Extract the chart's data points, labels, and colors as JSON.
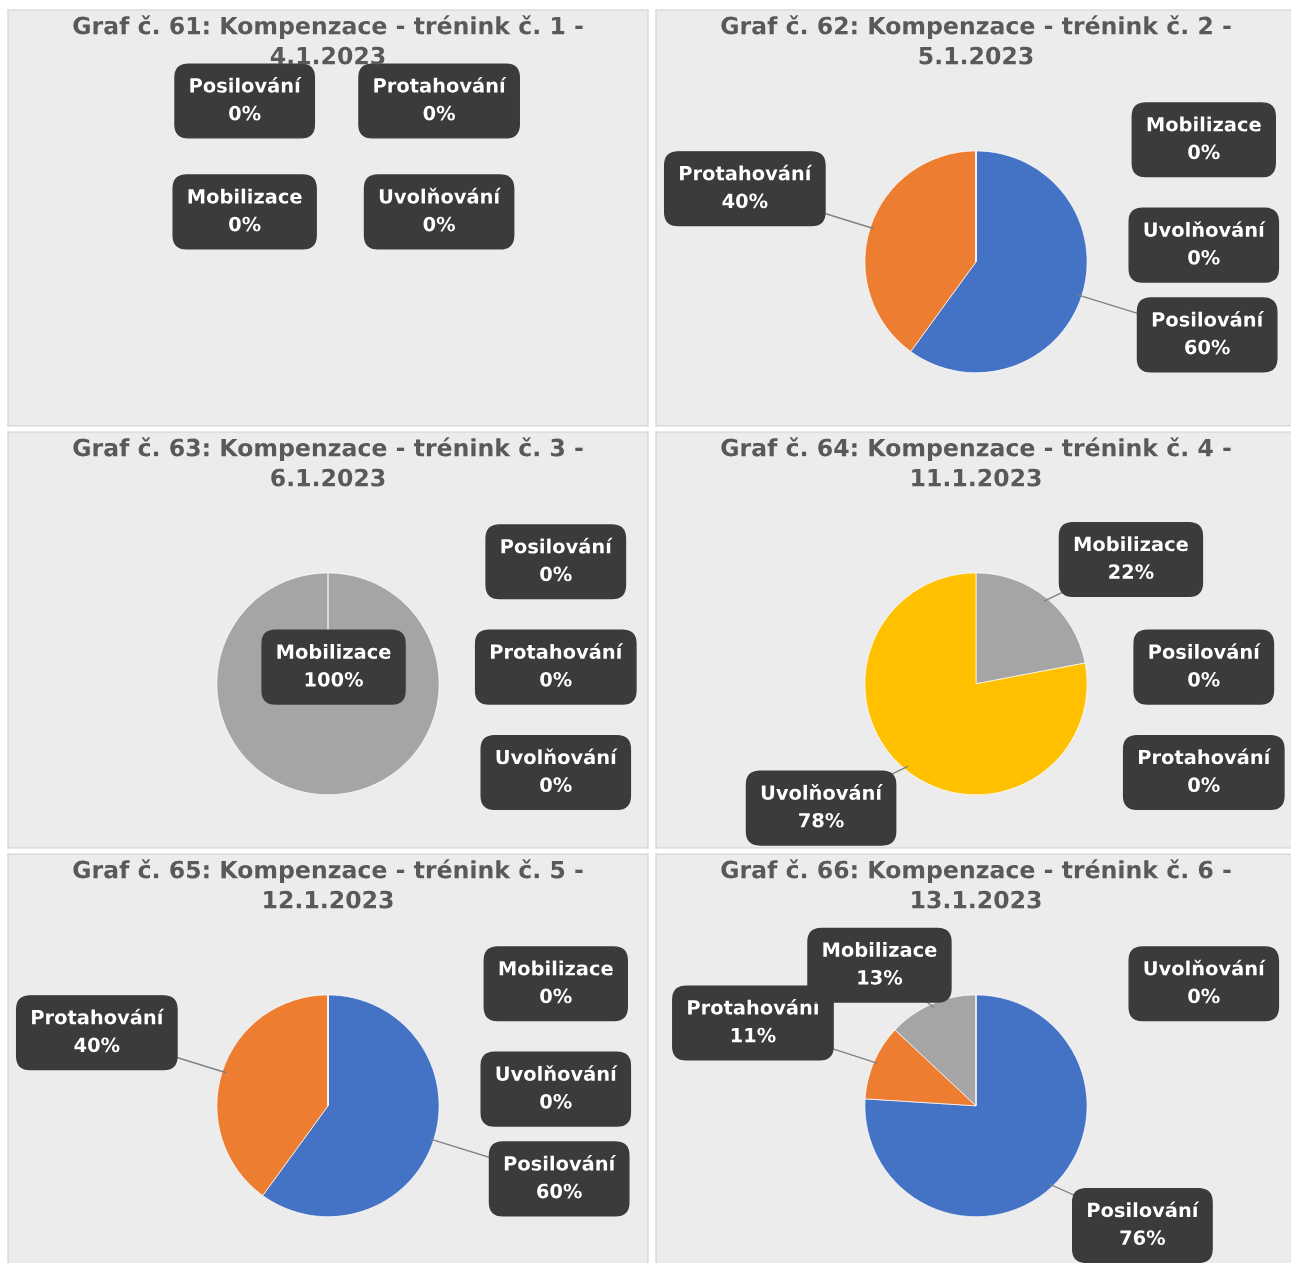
{
  "chart_data": [
    {
      "type": "other",
      "title": "Graf č. 61: Kompenzace - trénink č. 1 - 4.1.2023",
      "categories": [
        "Posilování",
        "Protahování",
        "Mobilizace",
        "Uvolňování"
      ],
      "values": [
        0,
        0,
        0,
        0
      ],
      "value_labels": [
        "0%",
        "0%",
        "0%",
        "0%"
      ]
    },
    {
      "type": "pie",
      "title": "Graf č. 62: Kompenzace - trénink č. 2 - 5.1.2023",
      "categories": [
        "Posilování",
        "Protahování",
        "Mobilizace",
        "Uvolňování"
      ],
      "values": [
        60,
        40,
        0,
        0
      ],
      "value_labels": [
        "60%",
        "40%",
        "0%",
        "0%"
      ],
      "colors": [
        "#4472c4",
        "#ed7d31",
        "#a5a5a5",
        "#ffc000"
      ]
    },
    {
      "type": "pie",
      "title": "Graf č. 63: Kompenzace - trénink č. 3 - 6.1.2023",
      "categories": [
        "Posilování",
        "Protahování",
        "Mobilizace",
        "Uvolňování"
      ],
      "values": [
        0,
        0,
        100,
        0
      ],
      "value_labels": [
        "0%",
        "0%",
        "100%",
        "0%"
      ],
      "colors": [
        "#4472c4",
        "#ed7d31",
        "#a5a5a5",
        "#ffc000"
      ]
    },
    {
      "type": "pie",
      "title": "Graf č. 64: Kompenzace - trénink č. 4 - 11.1.2023",
      "categories": [
        "Posilování",
        "Protahování",
        "Mobilizace",
        "Uvolňování"
      ],
      "values": [
        0,
        0,
        22,
        78
      ],
      "value_labels": [
        "0%",
        "0%",
        "22%",
        "78%"
      ],
      "colors": [
        "#4472c4",
        "#ed7d31",
        "#a5a5a5",
        "#ffc000"
      ]
    },
    {
      "type": "pie",
      "title": "Graf č. 65: Kompenzace - trénink č. 5 - 12.1.2023",
      "categories": [
        "Posilování",
        "Protahování",
        "Mobilizace",
        "Uvolňování"
      ],
      "values": [
        60,
        40,
        0,
        0
      ],
      "value_labels": [
        "60%",
        "40%",
        "0%",
        "0%"
      ],
      "colors": [
        "#4472c4",
        "#ed7d31",
        "#a5a5a5",
        "#ffc000"
      ]
    },
    {
      "type": "pie",
      "title": "Graf č. 66: Kompenzace - trénink č. 6 - 13.1.2023",
      "categories": [
        "Posilování",
        "Protahování",
        "Mobilizace",
        "Uvolňování"
      ],
      "values": [
        76,
        11,
        13,
        0
      ],
      "value_labels": [
        "76%",
        "11%",
        "13%",
        "0%"
      ],
      "colors": [
        "#4472c4",
        "#ed7d31",
        "#a5a5a5",
        "#ffc000"
      ]
    }
  ]
}
